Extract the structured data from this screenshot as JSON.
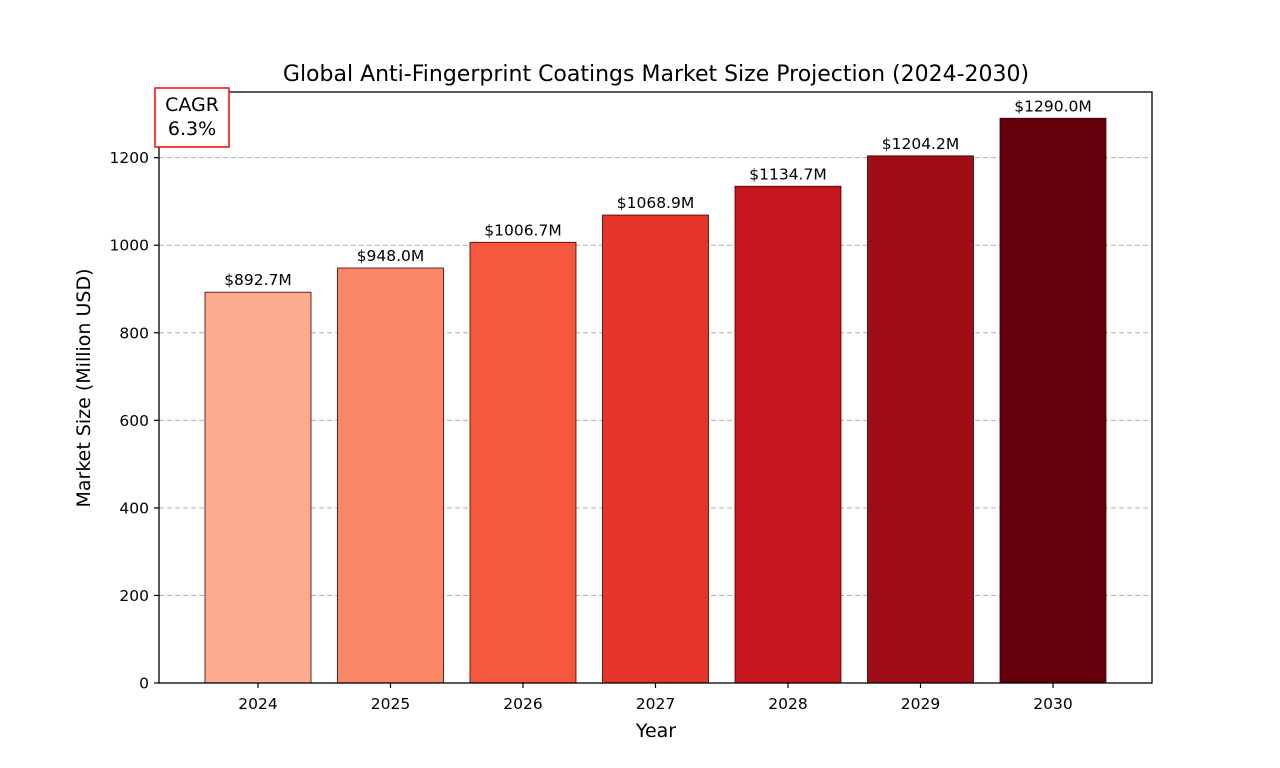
{
  "chart_data": {
    "type": "bar",
    "title": "Global Anti-Fingerprint Coatings Market Size Projection (2024-2030)",
    "xlabel": "Year",
    "ylabel": "Market Size (Million USD)",
    "categories": [
      "2024",
      "2025",
      "2026",
      "2027",
      "2028",
      "2029",
      "2030"
    ],
    "values": [
      892.7,
      948.0,
      1006.7,
      1068.9,
      1134.7,
      1204.2,
      1290.0
    ],
    "data_labels": [
      "$892.7M",
      "$948.0M",
      "$1006.7M",
      "$1068.9M",
      "$1134.7M",
      "$1204.2M",
      "$1290.0M"
    ],
    "colors": [
      "#fcab8f",
      "#fc8767",
      "#f6583e",
      "#e5342a",
      "#c4161c",
      "#9f0e16",
      "#67000d"
    ],
    "ylim": [
      0,
      1350
    ],
    "yticks": [
      0,
      200,
      400,
      600,
      800,
      1000,
      1200
    ],
    "grid": "horizontal dashed",
    "annotation": {
      "line1": "CAGR",
      "line2": "6.3%",
      "border_color": "#ff0000",
      "placement": "top-left"
    }
  }
}
